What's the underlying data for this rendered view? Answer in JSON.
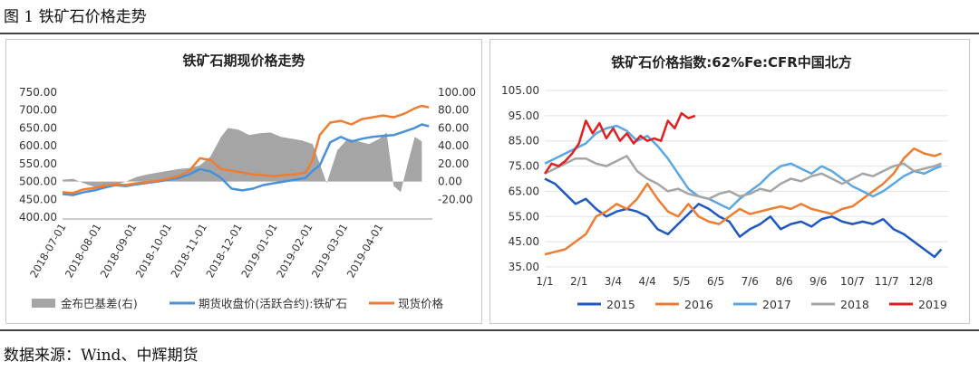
{
  "figure_title": "图 1  铁矿石价格走势",
  "source": "数据来源：Wind、中辉期货",
  "chart_data": [
    {
      "type": "line",
      "title": "铁矿石期现价格走势",
      "x_labels": [
        "2018-07-01",
        "2018-08-01",
        "2018-09-01",
        "2018-10-01",
        "2018-11-01",
        "2018-12-01",
        "2019-01-01",
        "2019-02-01",
        "2019-03-01",
        "2019-04-01"
      ],
      "x_range": [
        0,
        10.5
      ],
      "y_left_ticks": [
        "750.00",
        "700.00",
        "650.00",
        "600.00",
        "550.00",
        "500.00",
        "450.00",
        "400.00"
      ],
      "y_left_range": [
        400,
        750
      ],
      "y_right_ticks": [
        "100.00",
        "80.00",
        "60.00",
        "40.00",
        "20.00",
        "0.00",
        "-20.00"
      ],
      "y_right_range": [
        -40,
        100
      ],
      "series": [
        {
          "name": "金布巴基差(右)",
          "type": "area",
          "axis": "right",
          "color": "#a5a5a5",
          "x": [
            0,
            0.3,
            0.6,
            0.9,
            1.2,
            1.5,
            1.8,
            2.1,
            2.4,
            2.7,
            3,
            3.3,
            3.6,
            3.9,
            4.2,
            4.5,
            4.7,
            5,
            5.3,
            5.6,
            5.9,
            6.2,
            6.5,
            6.8,
            7.1,
            7.3,
            7.5,
            7.8,
            8.1,
            8.4,
            8.7,
            9,
            9.2,
            9.4,
            9.6,
            9.8,
            10,
            10.2
          ],
          "values": [
            2,
            3,
            -2,
            -6,
            -8,
            -4,
            0,
            5,
            8,
            10,
            12,
            14,
            15,
            18,
            28,
            50,
            60,
            58,
            52,
            54,
            55,
            50,
            48,
            46,
            42,
            20,
            -2,
            35,
            48,
            45,
            42,
            48,
            55,
            -5,
            -12,
            20,
            50,
            45
          ]
        },
        {
          "name": "期货收盘价(活跃合约):铁矿石",
          "type": "line",
          "axis": "left",
          "color": "#4a90d9",
          "x": [
            0,
            0.3,
            0.6,
            0.9,
            1.2,
            1.5,
            1.8,
            2.1,
            2.4,
            2.7,
            3,
            3.3,
            3.6,
            3.9,
            4.2,
            4.5,
            4.8,
            5.1,
            5.4,
            5.7,
            6,
            6.3,
            6.6,
            6.9,
            7.1,
            7.3,
            7.6,
            7.9,
            8.2,
            8.5,
            8.8,
            9.1,
            9.4,
            9.7,
            10,
            10.2,
            10.4
          ],
          "values": [
            465,
            462,
            470,
            475,
            483,
            490,
            487,
            492,
            496,
            500,
            505,
            510,
            520,
            535,
            528,
            510,
            480,
            475,
            480,
            490,
            495,
            500,
            505,
            510,
            530,
            545,
            610,
            625,
            612,
            620,
            625,
            628,
            630,
            640,
            650,
            660,
            655
          ]
        },
        {
          "name": "现货价格",
          "type": "line",
          "axis": "left",
          "color": "#ed7d31",
          "x": [
            0,
            0.3,
            0.6,
            0.9,
            1.2,
            1.5,
            1.8,
            2.1,
            2.4,
            2.7,
            3,
            3.3,
            3.6,
            3.9,
            4.2,
            4.5,
            4.8,
            5.1,
            5.4,
            5.7,
            6,
            6.3,
            6.6,
            6.9,
            7.1,
            7.3,
            7.6,
            7.9,
            8.2,
            8.5,
            8.8,
            9.1,
            9.4,
            9.7,
            10,
            10.2,
            10.4
          ],
          "values": [
            470,
            468,
            478,
            482,
            488,
            492,
            490,
            495,
            498,
            502,
            508,
            515,
            530,
            565,
            560,
            535,
            530,
            525,
            520,
            518,
            515,
            518,
            520,
            525,
            560,
            630,
            665,
            670,
            660,
            675,
            680,
            685,
            680,
            690,
            705,
            712,
            708
          ]
        }
      ]
    },
    {
      "type": "line",
      "title": "铁矿石价格指数:62%Fe:CFR中国北方",
      "x_labels": [
        "1/1",
        "2/1",
        "3/4",
        "4/4",
        "5/5",
        "6/5",
        "7/6",
        "8/6",
        "9/6",
        "10/7",
        "11/7",
        "12/8"
      ],
      "x_range": [
        0,
        11.8
      ],
      "y_ticks": [
        "105.00",
        "95.00",
        "85.00",
        "75.00",
        "65.00",
        "55.00",
        "45.00",
        "35.00"
      ],
      "y_range": [
        35,
        105
      ],
      "series": [
        {
          "name": "2015",
          "color": "#1f57c3",
          "x": [
            0,
            0.3,
            0.6,
            0.9,
            1.2,
            1.5,
            1.8,
            2.1,
            2.4,
            2.7,
            3,
            3.3,
            3.6,
            3.9,
            4.2,
            4.5,
            4.8,
            5.1,
            5.4,
            5.7,
            6,
            6.3,
            6.6,
            6.9,
            7.2,
            7.5,
            7.8,
            8.1,
            8.4,
            8.7,
            9,
            9.3,
            9.6,
            9.9,
            10.2,
            10.5,
            10.8,
            11.1,
            11.4,
            11.6
          ],
          "values": [
            70,
            68,
            64,
            60,
            62,
            58,
            55,
            57,
            58,
            57,
            55,
            50,
            48,
            52,
            56,
            60,
            58,
            55,
            53,
            47,
            50,
            52,
            55,
            50,
            52,
            53,
            51,
            54,
            55,
            53,
            52,
            53,
            52,
            54,
            50,
            48,
            45,
            42,
            39,
            42
          ]
        },
        {
          "name": "2016",
          "color": "#ed7d31",
          "x": [
            0,
            0.3,
            0.6,
            0.9,
            1.2,
            1.5,
            1.8,
            2.1,
            2.4,
            2.7,
            3,
            3.3,
            3.6,
            3.9,
            4.2,
            4.5,
            4.8,
            5.1,
            5.4,
            5.7,
            6,
            6.3,
            6.6,
            6.9,
            7.2,
            7.5,
            7.8,
            8.1,
            8.4,
            8.7,
            9,
            9.3,
            9.6,
            9.9,
            10.2,
            10.5,
            10.8,
            11.1,
            11.4,
            11.6
          ],
          "values": [
            40,
            41,
            42,
            45,
            48,
            55,
            57,
            60,
            58,
            62,
            68,
            62,
            57,
            55,
            60,
            55,
            53,
            52,
            55,
            58,
            56,
            57,
            58,
            59,
            58,
            60,
            58,
            57,
            56,
            58,
            59,
            62,
            65,
            68,
            72,
            78,
            82,
            80,
            79,
            80
          ]
        },
        {
          "name": "2017",
          "color": "#5ba7e3",
          "x": [
            0,
            0.3,
            0.6,
            0.9,
            1.2,
            1.5,
            1.8,
            2.1,
            2.4,
            2.7,
            3,
            3.3,
            3.6,
            3.9,
            4.2,
            4.5,
            4.8,
            5.1,
            5.4,
            5.7,
            6,
            6.3,
            6.6,
            6.9,
            7.2,
            7.5,
            7.8,
            8.1,
            8.4,
            8.7,
            9,
            9.3,
            9.6,
            9.9,
            10.2,
            10.5,
            10.8,
            11.1,
            11.4,
            11.6
          ],
          "values": [
            76,
            78,
            80,
            82,
            84,
            88,
            90,
            91,
            89,
            85,
            87,
            83,
            78,
            72,
            66,
            63,
            62,
            60,
            58,
            62,
            65,
            68,
            72,
            75,
            76,
            74,
            72,
            75,
            73,
            70,
            67,
            65,
            63,
            65,
            68,
            71,
            73,
            72,
            74,
            75
          ]
        },
        {
          "name": "2018",
          "color": "#a5a5a5",
          "x": [
            0,
            0.3,
            0.6,
            0.9,
            1.2,
            1.5,
            1.8,
            2.1,
            2.4,
            2.7,
            3,
            3.3,
            3.6,
            3.9,
            4.2,
            4.5,
            4.8,
            5.1,
            5.4,
            5.7,
            6,
            6.3,
            6.6,
            6.9,
            7.2,
            7.5,
            7.8,
            8.1,
            8.4,
            8.7,
            9,
            9.3,
            9.6,
            9.9,
            10.2,
            10.5,
            10.8,
            11.1,
            11.4,
            11.6
          ],
          "values": [
            72,
            74,
            76,
            78,
            78,
            76,
            75,
            77,
            79,
            73,
            70,
            68,
            65,
            66,
            64,
            63,
            62,
            64,
            65,
            63,
            64,
            66,
            65,
            68,
            70,
            69,
            71,
            72,
            70,
            68,
            70,
            72,
            71,
            73,
            75,
            76,
            73,
            74,
            75,
            76
          ]
        },
        {
          "name": "2019",
          "color": "#e02020",
          "x": [
            0,
            0.2,
            0.4,
            0.6,
            0.8,
            1,
            1.2,
            1.4,
            1.6,
            1.8,
            2,
            2.2,
            2.4,
            2.6,
            2.8,
            3,
            3.2,
            3.4,
            3.6,
            3.8,
            4,
            4.2,
            4.4
          ],
          "values": [
            72,
            76,
            75,
            77,
            80,
            84,
            93,
            88,
            92,
            86,
            90,
            85,
            88,
            84,
            87,
            85,
            86,
            85,
            93,
            90,
            96,
            94,
            95
          ]
        }
      ]
    }
  ]
}
